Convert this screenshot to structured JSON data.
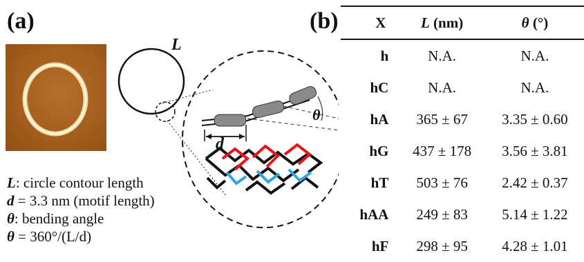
{
  "panel_a": {
    "label": "(a)",
    "contour_symbol": "L",
    "segment_symbol": "d",
    "angle_symbol": "θ",
    "legend": [
      {
        "sym": "L",
        "text": ": circle contour length"
      },
      {
        "sym": "d",
        "text": " = 3.3 nm (motif length)"
      },
      {
        "sym": "θ",
        "text": ": bending angle"
      },
      {
        "sym": "θ",
        "text": " = 360°/(L/d)"
      }
    ]
  },
  "panel_b": {
    "label": "(b)",
    "headers": {
      "x": "X",
      "l_sym": "L",
      "l_unit": " (nm)",
      "t_sym": "θ",
      "t_unit": " (°)"
    },
    "rows": [
      {
        "x": "h",
        "l": "N.A.",
        "t": "N.A."
      },
      {
        "x": "hC",
        "l": "N.A.",
        "t": "N.A."
      },
      {
        "x": "hA",
        "l": "365 ± 67",
        "t": "3.35 ± 0.60"
      },
      {
        "x": "hG",
        "l": "437 ± 178",
        "t": "3.56 ± 3.81"
      },
      {
        "x": "hT",
        "l": "503 ± 76",
        "t": "2.42 ± 0.37"
      },
      {
        "x": "hAA",
        "l": "249 ± 83",
        "t": "5.14 ± 1.22"
      },
      {
        "x": "hF",
        "l": "298 ± 95",
        "t": "4.28 ± 1.01"
      }
    ]
  },
  "colors": {
    "strand_red": "#e8141c",
    "strand_blue": "#2aa7df",
    "strand_black": "#111111",
    "motif_gray": "#8a8a8a",
    "afm_brown": "#a45e1d"
  }
}
